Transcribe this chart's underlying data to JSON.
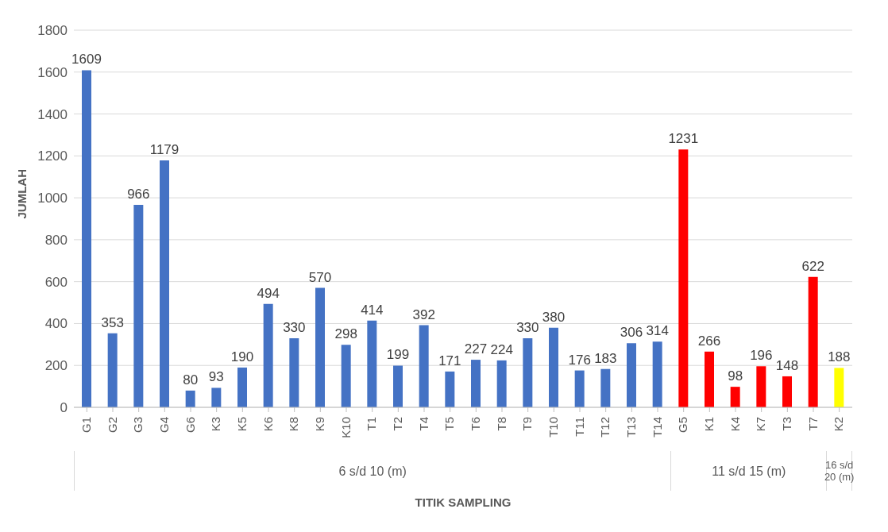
{
  "chart_data": {
    "type": "bar",
    "xlabel": "TITIK SAMPLING",
    "ylabel": "JUMLAH",
    "categories": [
      "G1",
      "G2",
      "G3",
      "G4",
      "G6",
      "K3",
      "K5",
      "K6",
      "K8",
      "K9",
      "K10",
      "T1",
      "T2",
      "T4",
      "T5",
      "T6",
      "T8",
      "T9",
      "T10",
      "T11",
      "T12",
      "T13",
      "T14",
      "G5",
      "K1",
      "K4",
      "K7",
      "T3",
      "T7",
      "K2"
    ],
    "values": [
      1609,
      353,
      966,
      1179,
      80,
      93,
      190,
      494,
      330,
      570,
      298,
      414,
      199,
      392,
      171,
      227,
      224,
      330,
      380,
      176,
      183,
      306,
      314,
      1231,
      266,
      98,
      196,
      148,
      622,
      188
    ],
    "colors": [
      "#4472c4",
      "#4472c4",
      "#4472c4",
      "#4472c4",
      "#4472c4",
      "#4472c4",
      "#4472c4",
      "#4472c4",
      "#4472c4",
      "#4472c4",
      "#4472c4",
      "#4472c4",
      "#4472c4",
      "#4472c4",
      "#4472c4",
      "#4472c4",
      "#4472c4",
      "#4472c4",
      "#4472c4",
      "#4472c4",
      "#4472c4",
      "#4472c4",
      "#4472c4",
      "#ff0000",
      "#ff0000",
      "#ff0000",
      "#ff0000",
      "#ff0000",
      "#ff0000",
      "#ffff00"
    ],
    "annotations": [
      "6 s/d 10 (m)",
      "11 s/d 15 (m)",
      "16 s/d 20 (m)"
    ],
    "ylim": [
      0,
      1800
    ],
    "yticks": [
      0,
      200,
      400,
      600,
      800,
      1000,
      1200,
      1400,
      1600,
      1800
    ],
    "grid": "y",
    "data_labels": true
  }
}
